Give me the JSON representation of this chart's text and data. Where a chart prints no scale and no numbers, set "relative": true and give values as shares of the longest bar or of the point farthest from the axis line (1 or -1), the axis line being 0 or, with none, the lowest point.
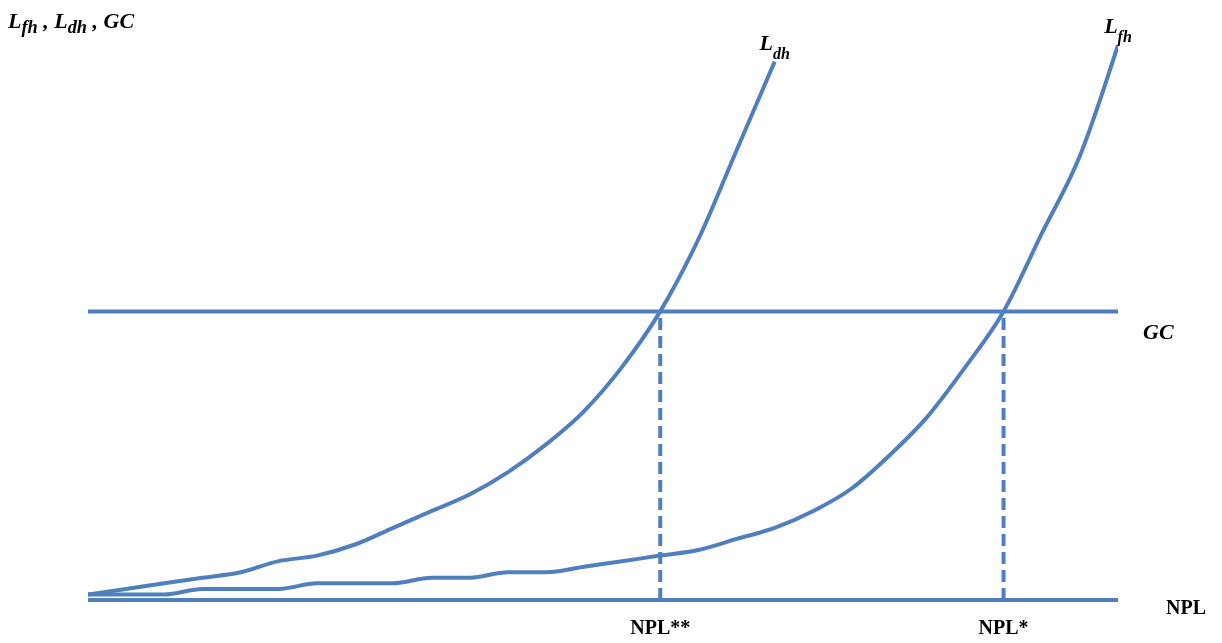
{
  "chart_data": {
    "type": "line",
    "relative": true,
    "xlabel": "NPL",
    "ylabel": "L$_{fh}$ , L$_{dh}$ , GC",
    "categories": [
      null,
      null,
      null,
      null,
      null,
      null,
      null,
      null,
      null,
      null,
      null,
      null,
      null,
      null,
      null,
      "NPL**",
      null,
      null,
      null,
      null,
      null,
      null,
      null,
      null,
      "NPL*",
      null,
      null,
      null
    ],
    "series": [
      {
        "name": "L$_{dh}$",
        "color": "#4f7fbf",
        "values": [
          0.01,
          0.02,
          0.03,
          0.04,
          0.05,
          0.07,
          0.08,
          0.1,
          0.13,
          0.16,
          0.19,
          0.23,
          0.28,
          0.34,
          0.42,
          0.52,
          0.65,
          0.81,
          0.97,
          null,
          null,
          null,
          null,
          null,
          null,
          null,
          null,
          null
        ]
      },
      {
        "name": "L$_{fh}$",
        "color": "#4f7fbf",
        "values": [
          0.01,
          0.01,
          0.01,
          0.02,
          0.02,
          0.02,
          0.03,
          0.03,
          0.03,
          0.04,
          0.04,
          0.05,
          0.05,
          0.06,
          0.07,
          0.08,
          0.09,
          0.11,
          0.13,
          0.16,
          0.2,
          0.26,
          0.33,
          0.42,
          0.52,
          0.66,
          0.8,
          1
        ]
      }
    ],
    "ref_lines": [
      {
        "axis": "y",
        "value": 0.52,
        "label": "GC",
        "color": "#4f7fbf",
        "line_style": "solid"
      },
      {
        "axis": "x",
        "value": "NPL**",
        "color": "#4f7fbf",
        "line_style": "dashed"
      },
      {
        "axis": "x",
        "value": "NPL*",
        "color": "#4f7fbf",
        "line_style": "dashed"
      }
    ],
    "grid": false,
    "legend": false,
    "marker": "none",
    "line_style": "solid"
  }
}
